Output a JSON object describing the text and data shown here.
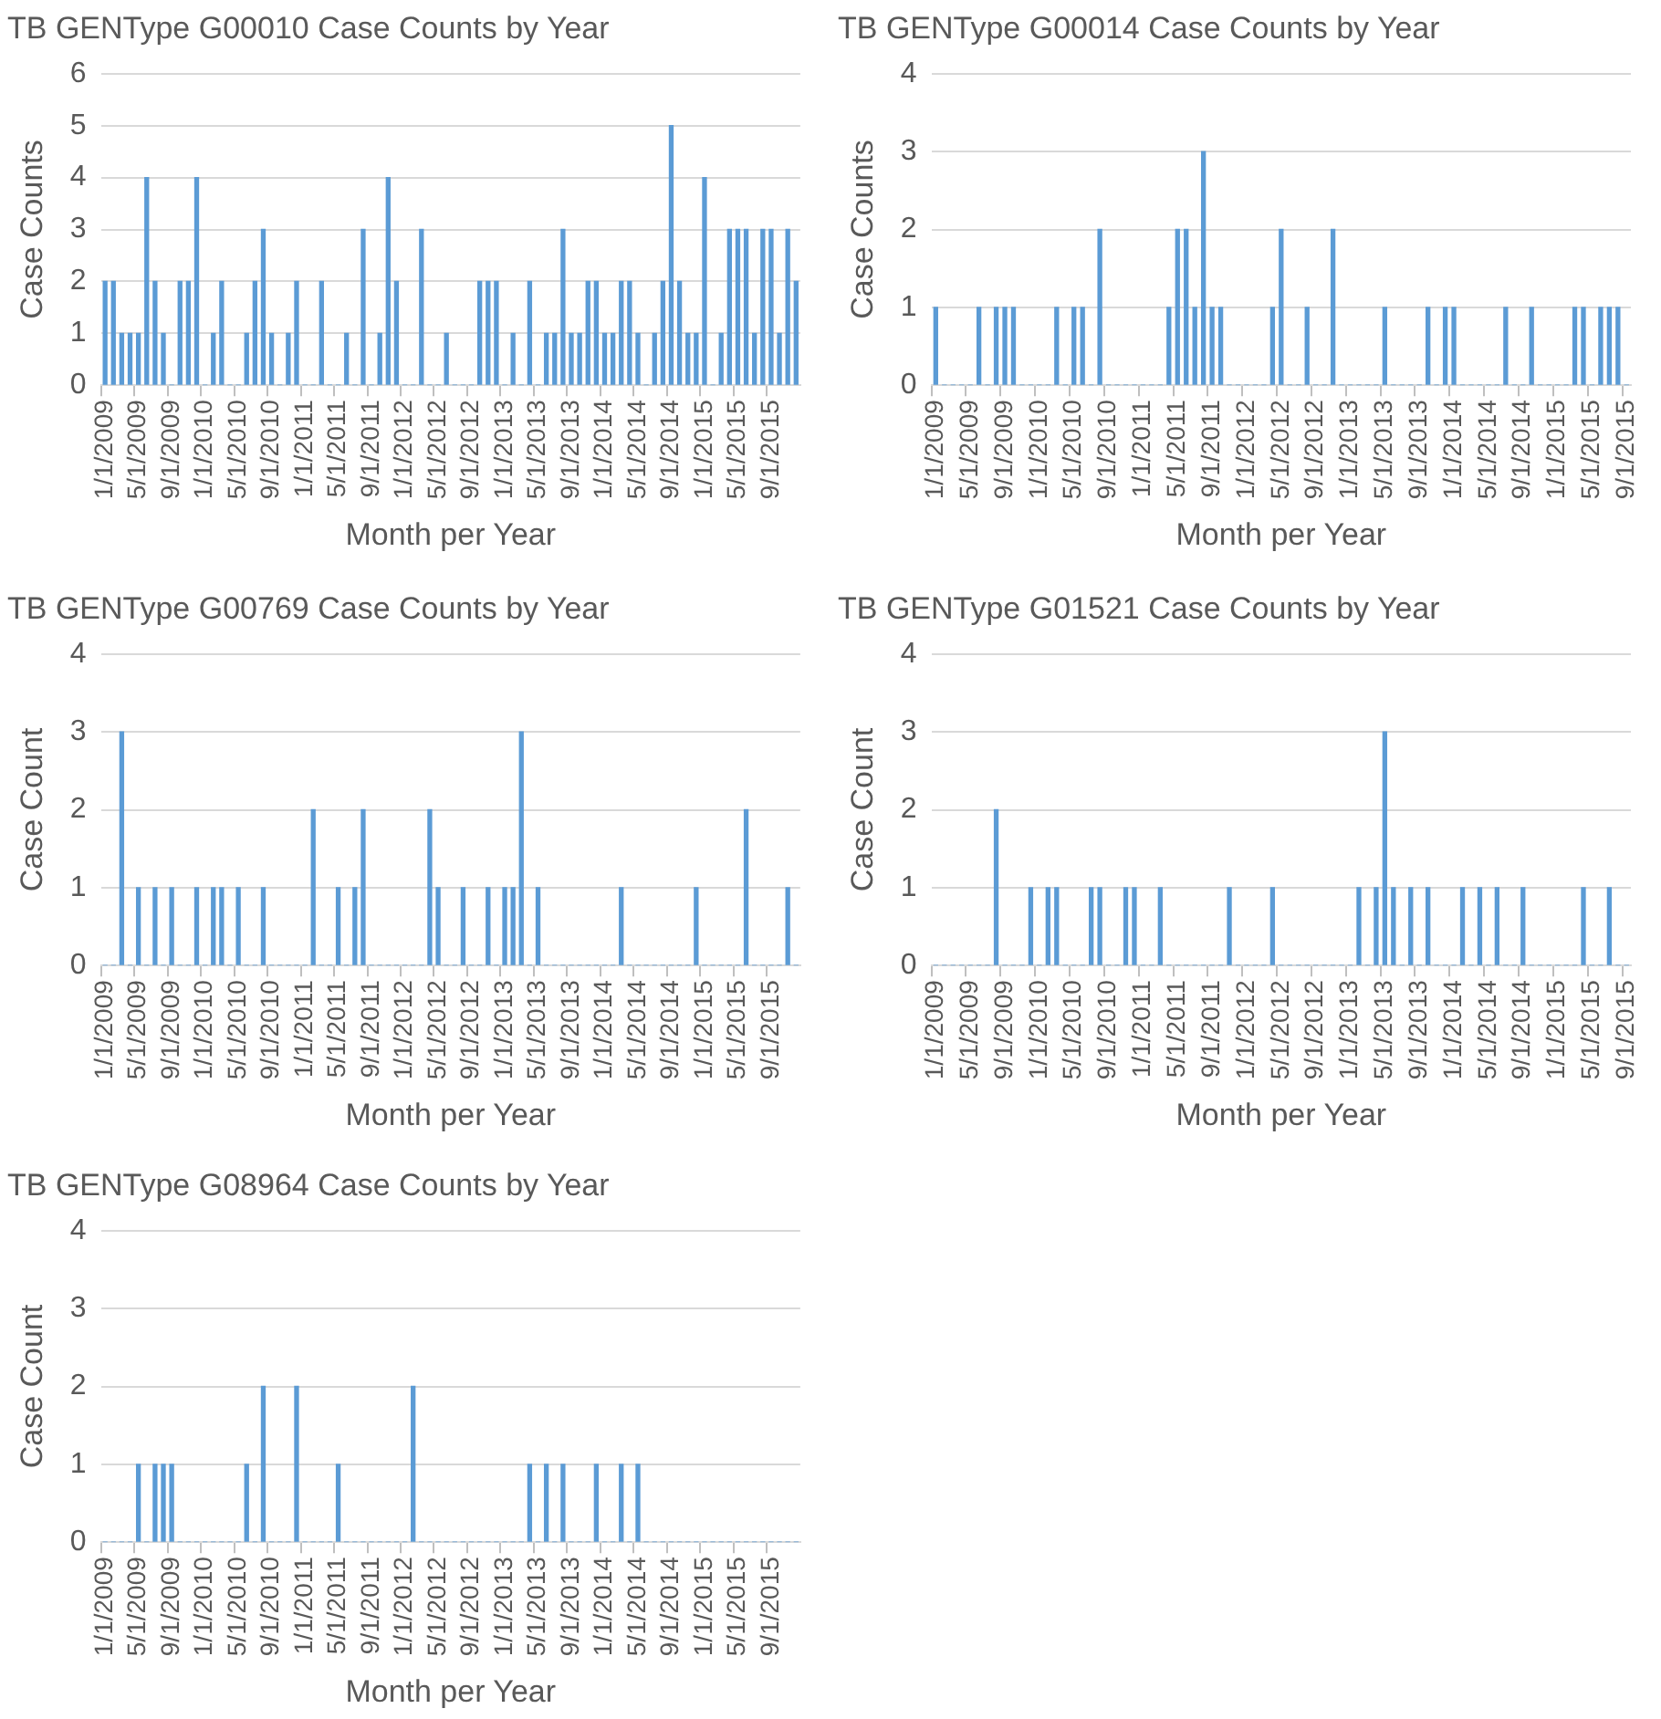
{
  "chart_data": [
    {
      "type": "bar",
      "title": "TB GENType G00010 Case Counts by Year",
      "xlabel": "Month per Year",
      "ylabel": "Case Counts",
      "color": "#5b9bd5",
      "ylim": [
        0,
        6
      ],
      "yticks": [
        0,
        1,
        2,
        3,
        4,
        5,
        6
      ],
      "grid": "y",
      "categories": [
        "1/1/2009",
        null,
        null,
        null,
        "5/1/2009",
        null,
        null,
        null,
        "9/1/2009",
        null,
        null,
        null,
        "1/1/2010",
        null,
        null,
        null,
        "5/1/2010",
        null,
        null,
        null,
        "9/1/2010",
        null,
        null,
        null,
        "1/1/2011",
        null,
        null,
        null,
        "5/1/2011",
        null,
        null,
        null,
        "9/1/2011",
        null,
        null,
        null,
        "1/1/2012",
        null,
        null,
        null,
        "5/1/2012",
        null,
        null,
        null,
        "9/1/2012",
        null,
        null,
        null,
        "1/1/2013",
        null,
        null,
        null,
        "5/1/2013",
        null,
        null,
        null,
        "9/1/2013",
        null,
        null,
        null,
        "1/1/2014",
        null,
        null,
        null,
        "5/1/2014",
        null,
        null,
        null,
        "9/1/2014",
        null,
        null,
        null,
        "1/1/2015",
        null,
        null,
        null,
        "5/1/2015",
        null,
        null,
        null,
        "9/1/2015",
        null,
        null,
        null
      ],
      "values": [
        2,
        2,
        1,
        1,
        1,
        4,
        2,
        1,
        0,
        2,
        2,
        4,
        0,
        1,
        2,
        0,
        0,
        1,
        2,
        3,
        1,
        0,
        1,
        2,
        0,
        0,
        2,
        0,
        0,
        1,
        0,
        3,
        0,
        1,
        4,
        2,
        0,
        0,
        3,
        0,
        0,
        1,
        0,
        0,
        0,
        2,
        2,
        2,
        0,
        1,
        0,
        2,
        0,
        1,
        1,
        3,
        1,
        1,
        2,
        2,
        1,
        1,
        2,
        2,
        1,
        0,
        1,
        2,
        5,
        2,
        1,
        1,
        4,
        0,
        1,
        3,
        3,
        3,
        1,
        3,
        3,
        1,
        3,
        2
      ]
    },
    {
      "type": "bar",
      "title": "TB GENType G00014 Case Counts by Year",
      "xlabel": "Month per Year",
      "ylabel": "Case Counts",
      "color": "#5b9bd5",
      "ylim": [
        0,
        4
      ],
      "yticks": [
        0,
        1,
        2,
        3,
        4
      ],
      "grid": "y",
      "categories": [
        "1/1/2009",
        null,
        null,
        null,
        "5/1/2009",
        null,
        null,
        null,
        "9/1/2009",
        null,
        null,
        null,
        "1/1/2010",
        null,
        null,
        null,
        "5/1/2010",
        null,
        null,
        null,
        "9/1/2010",
        null,
        null,
        null,
        "1/1/2011",
        null,
        null,
        null,
        "5/1/2011",
        null,
        null,
        null,
        "9/1/2011",
        null,
        null,
        null,
        "1/1/2012",
        null,
        null,
        null,
        "5/1/2012",
        null,
        null,
        null,
        "9/1/2012",
        null,
        null,
        null,
        "1/1/2013",
        null,
        null,
        null,
        "5/1/2013",
        null,
        null,
        null,
        "9/1/2013",
        null,
        null,
        null,
        "1/1/2014",
        null,
        null,
        null,
        "5/1/2014",
        null,
        null,
        null,
        "9/1/2014",
        null,
        null,
        null,
        "1/1/2015",
        null,
        null,
        null,
        "5/1/2015",
        null,
        null,
        null,
        "9/1/2015"
      ],
      "values": [
        1,
        0,
        0,
        0,
        0,
        1,
        0,
        1,
        1,
        1,
        0,
        0,
        0,
        0,
        1,
        0,
        1,
        1,
        0,
        2,
        0,
        0,
        0,
        0,
        0,
        0,
        0,
        1,
        2,
        2,
        1,
        3,
        1,
        1,
        0,
        0,
        0,
        0,
        0,
        1,
        2,
        0,
        0,
        1,
        0,
        0,
        2,
        0,
        0,
        0,
        0,
        0,
        1,
        0,
        0,
        0,
        0,
        1,
        0,
        1,
        1,
        0,
        0,
        0,
        0,
        0,
        1,
        0,
        0,
        1,
        0,
        0,
        0,
        0,
        1,
        1,
        0,
        1,
        1,
        1,
        0
      ]
    },
    {
      "type": "bar",
      "title": "TB GENType G00769 Case Counts by Year",
      "xlabel": "Month per Year",
      "ylabel": "Case Count",
      "color": "#5b9bd5",
      "ylim": [
        0,
        4
      ],
      "yticks": [
        0,
        1,
        2,
        3,
        4
      ],
      "grid": "y",
      "categories": [
        "1/1/2009",
        null,
        null,
        null,
        "5/1/2009",
        null,
        null,
        null,
        "9/1/2009",
        null,
        null,
        null,
        "1/1/2010",
        null,
        null,
        null,
        "5/1/2010",
        null,
        null,
        null,
        "9/1/2010",
        null,
        null,
        null,
        "1/1/2011",
        null,
        null,
        null,
        "5/1/2011",
        null,
        null,
        null,
        "9/1/2011",
        null,
        null,
        null,
        "1/1/2012",
        null,
        null,
        null,
        "5/1/2012",
        null,
        null,
        null,
        "9/1/2012",
        null,
        null,
        null,
        "1/1/2013",
        null,
        null,
        null,
        "5/1/2013",
        null,
        null,
        null,
        "9/1/2013",
        null,
        null,
        null,
        "1/1/2014",
        null,
        null,
        null,
        "5/1/2014",
        null,
        null,
        null,
        "9/1/2014",
        null,
        null,
        null,
        "1/1/2015",
        null,
        null,
        null,
        "5/1/2015",
        null,
        null,
        null,
        "9/1/2015",
        null,
        null,
        null
      ],
      "values": [
        0,
        0,
        3,
        0,
        1,
        0,
        1,
        0,
        1,
        0,
        0,
        1,
        0,
        1,
        1,
        0,
        1,
        0,
        0,
        1,
        0,
        0,
        0,
        0,
        0,
        2,
        0,
        0,
        1,
        0,
        1,
        2,
        0,
        0,
        0,
        0,
        0,
        0,
        0,
        2,
        1,
        0,
        0,
        1,
        0,
        0,
        1,
        0,
        1,
        1,
        3,
        0,
        1,
        0,
        0,
        0,
        0,
        0,
        0,
        0,
        0,
        0,
        1,
        0,
        0,
        0,
        0,
        0,
        0,
        0,
        0,
        1,
        0,
        0,
        0,
        0,
        0,
        2,
        0,
        0,
        0,
        0,
        1,
        0
      ]
    },
    {
      "type": "bar",
      "title": "TB GENType G01521 Case Counts by Year",
      "xlabel": "Month per Year",
      "ylabel": "Case Count",
      "color": "#5b9bd5",
      "ylim": [
        0,
        4
      ],
      "yticks": [
        0,
        1,
        2,
        3,
        4
      ],
      "grid": "y",
      "categories": [
        "1/1/2009",
        null,
        null,
        null,
        "5/1/2009",
        null,
        null,
        null,
        "9/1/2009",
        null,
        null,
        null,
        "1/1/2010",
        null,
        null,
        null,
        "5/1/2010",
        null,
        null,
        null,
        "9/1/2010",
        null,
        null,
        null,
        "1/1/2011",
        null,
        null,
        null,
        "5/1/2011",
        null,
        null,
        null,
        "9/1/2011",
        null,
        null,
        null,
        "1/1/2012",
        null,
        null,
        null,
        "5/1/2012",
        null,
        null,
        null,
        "9/1/2012",
        null,
        null,
        null,
        "1/1/2013",
        null,
        null,
        null,
        "5/1/2013",
        null,
        null,
        null,
        "9/1/2013",
        null,
        null,
        null,
        "1/1/2014",
        null,
        null,
        null,
        "5/1/2014",
        null,
        null,
        null,
        "9/1/2014",
        null,
        null,
        null,
        "1/1/2015",
        null,
        null,
        null,
        "5/1/2015",
        null,
        null,
        null,
        "9/1/2015"
      ],
      "values": [
        0,
        0,
        0,
        0,
        0,
        0,
        0,
        2,
        0,
        0,
        0,
        1,
        0,
        1,
        1,
        0,
        0,
        0,
        1,
        1,
        0,
        0,
        1,
        1,
        0,
        0,
        1,
        0,
        0,
        0,
        0,
        0,
        0,
        0,
        1,
        0,
        0,
        0,
        0,
        1,
        0,
        0,
        0,
        0,
        0,
        0,
        0,
        0,
        0,
        1,
        0,
        1,
        3,
        1,
        0,
        1,
        0,
        1,
        0,
        0,
        0,
        1,
        0,
        1,
        0,
        1,
        0,
        0,
        1,
        0,
        0,
        0,
        0,
        0,
        0,
        1,
        0,
        0,
        1,
        0,
        0
      ]
    },
    {
      "type": "bar",
      "title": "TB GENType G08964 Case Counts by Year",
      "xlabel": "Month per Year",
      "ylabel": "Case Count",
      "color": "#5b9bd5",
      "ylim": [
        0,
        4
      ],
      "yticks": [
        0,
        1,
        2,
        3,
        4
      ],
      "grid": "y",
      "categories": [
        "1/1/2009",
        null,
        null,
        null,
        "5/1/2009",
        null,
        null,
        null,
        "9/1/2009",
        null,
        null,
        null,
        "1/1/2010",
        null,
        null,
        null,
        "5/1/2010",
        null,
        null,
        null,
        "9/1/2010",
        null,
        null,
        null,
        "1/1/2011",
        null,
        null,
        null,
        "5/1/2011",
        null,
        null,
        null,
        "9/1/2011",
        null,
        null,
        null,
        "1/1/2012",
        null,
        null,
        null,
        "5/1/2012",
        null,
        null,
        null,
        "9/1/2012",
        null,
        null,
        null,
        "1/1/2013",
        null,
        null,
        null,
        "5/1/2013",
        null,
        null,
        null,
        "9/1/2013",
        null,
        null,
        null,
        "1/1/2014",
        null,
        null,
        null,
        "5/1/2014",
        null,
        null,
        null,
        "9/1/2014",
        null,
        null,
        null,
        "1/1/2015",
        null,
        null,
        null,
        "5/1/2015",
        null,
        null,
        null,
        "9/1/2015",
        null,
        null,
        null
      ],
      "values": [
        0,
        0,
        0,
        0,
        1,
        0,
        1,
        1,
        1,
        0,
        0,
        0,
        0,
        0,
        0,
        0,
        0,
        1,
        0,
        2,
        0,
        0,
        0,
        2,
        0,
        0,
        0,
        0,
        1,
        0,
        0,
        0,
        0,
        0,
        0,
        0,
        0,
        2,
        0,
        0,
        0,
        0,
        0,
        0,
        0,
        0,
        0,
        0,
        0,
        0,
        0,
        1,
        0,
        1,
        0,
        1,
        0,
        0,
        0,
        1,
        0,
        0,
        1,
        0,
        1,
        0,
        0,
        0,
        0,
        0,
        0,
        0,
        0,
        0,
        0,
        0,
        0,
        0,
        0,
        0,
        0,
        0,
        0,
        0
      ]
    }
  ]
}
